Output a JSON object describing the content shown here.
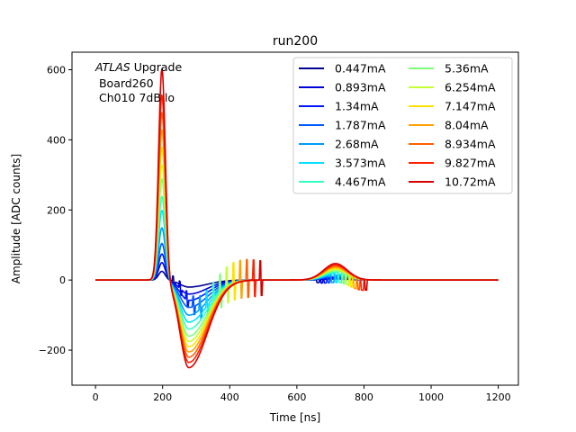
{
  "chart_data": {
    "type": "line",
    "title": "run200",
    "xlabel": "Time [ns]",
    "ylabel": "Amplitude [ADC counts]",
    "xlim": [
      -70,
      1260
    ],
    "ylim": [
      -300,
      650
    ],
    "xticks": [
      0,
      200,
      400,
      600,
      800,
      1000,
      1200
    ],
    "yticks": [
      -200,
      0,
      200,
      400,
      600
    ],
    "grid": false,
    "legend": {
      "placement": "top-right",
      "columns": 2
    },
    "annotation": {
      "italic": "ATLAS",
      "rest": " Upgrade",
      "line2": " Board260",
      "line3": " Ch010 7dB lo"
    },
    "x_range": [
      0,
      1200
    ],
    "series": [
      {
        "name": "0.447mA",
        "color": "#00008f",
        "peak": 25,
        "undershoot": -20,
        "tail": 3,
        "glitch_x": 230,
        "glitch_amp": 15
      },
      {
        "name": "0.893mA",
        "color": "#0000d8",
        "peak": 50,
        "undershoot": -40,
        "tail": 5,
        "glitch_x": 250,
        "glitch_amp": 20
      },
      {
        "name": "1.34mA",
        "color": "#0016ff",
        "peak": 75,
        "undershoot": -58,
        "tail": 8,
        "glitch_x": 270,
        "glitch_amp": 25
      },
      {
        "name": "1.787mA",
        "color": "#005aff",
        "peak": 105,
        "undershoot": -78,
        "tail": 10,
        "glitch_x": 290,
        "glitch_amp": 30
      },
      {
        "name": "2.68mA",
        "color": "#009dff",
        "peak": 150,
        "undershoot": -100,
        "tail": 14,
        "glitch_x": 310,
        "glitch_amp": 38
      },
      {
        "name": "3.573mA",
        "color": "#00e2ff",
        "peak": 200,
        "undershoot": -120,
        "tail": 18,
        "glitch_x": 330,
        "glitch_amp": 45
      },
      {
        "name": "4.467mA",
        "color": "#33ffc3",
        "peak": 240,
        "undershoot": -140,
        "tail": 22,
        "glitch_x": 350,
        "glitch_amp": 50
      },
      {
        "name": "5.36mA",
        "color": "#7cff79",
        "peak": 290,
        "undershoot": -160,
        "tail": 26,
        "glitch_x": 370,
        "glitch_amp": 55
      },
      {
        "name": "6.254mA",
        "color": "#c2ff33",
        "peak": 330,
        "undershoot": -175,
        "tail": 30,
        "glitch_x": 390,
        "glitch_amp": 58
      },
      {
        "name": "7.147mA",
        "color": "#ffe200",
        "peak": 380,
        "undershoot": -190,
        "tail": 33,
        "glitch_x": 410,
        "glitch_amp": 60
      },
      {
        "name": "8.04mA",
        "color": "#ffa200",
        "peak": 430,
        "undershoot": -205,
        "tail": 36,
        "glitch_x": 430,
        "glitch_amp": 60
      },
      {
        "name": "8.934mA",
        "color": "#ff6000",
        "peak": 480,
        "undershoot": -220,
        "tail": 40,
        "glitch_x": 450,
        "glitch_amp": 60
      },
      {
        "name": "9.827mA",
        "color": "#ff1e00",
        "peak": 530,
        "undershoot": -235,
        "tail": 43,
        "glitch_x": 470,
        "glitch_amp": 58
      },
      {
        "name": "10.72mA",
        "color": "#d70000",
        "peak": 605,
        "undershoot": -250,
        "tail": 47,
        "glitch_x": 490,
        "glitch_amp": 55
      }
    ]
  }
}
